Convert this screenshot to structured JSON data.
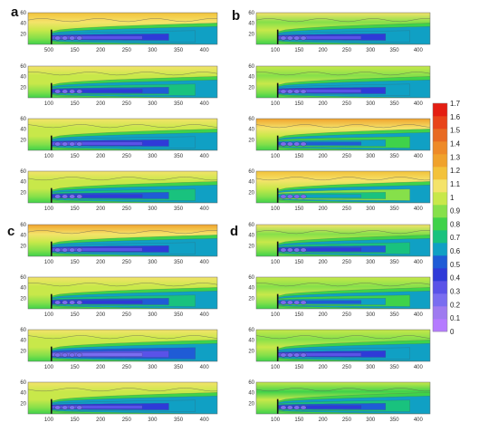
{
  "chart_data": {
    "type": "heatmap",
    "title": "",
    "panel_labels": [
      "a",
      "b",
      "c",
      "d"
    ],
    "plots_per_panel": 4,
    "xlim": [
      60,
      425
    ],
    "ylim": [
      0,
      60
    ],
    "x_ticks_left": [
      "100",
      "150",
      "200",
      "250",
      "300",
      "350",
      "400"
    ],
    "x_ticks_first": [
      "100",
      "150",
      "200",
      "250",
      "300",
      "350",
      "400"
    ],
    "x_ticks_first_display": [
      "500",
      "150",
      "200",
      "250",
      "300",
      "350",
      "400"
    ],
    "y_ticks": [
      "20",
      "40",
      "60"
    ],
    "colorbar": {
      "min": 0,
      "max": 1.7,
      "labels": [
        "0",
        "0.1",
        "0.2",
        "0.3",
        "0.4",
        "0.5",
        "0.6",
        "0.7",
        "0.8",
        "0.9",
        "1",
        "1.1",
        "1.2",
        "1.3",
        "1.4",
        "1.5",
        "1.6",
        "1.7"
      ],
      "colors": [
        "#b57bff",
        "#9f7bf0",
        "#7a6df0",
        "#5a52e8",
        "#2f3ad8",
        "#1f5cd6",
        "#10a0c4",
        "#19c27e",
        "#3fd24a",
        "#86e04a",
        "#c8e84a",
        "#f4e36a",
        "#f3c23a",
        "#f0a22c",
        "#ee8a28",
        "#e86a22",
        "#e8441a",
        "#e41e12"
      ]
    },
    "obstacle_x": 105,
    "wake_intensity": [
      [
        0.55,
        0.65,
        0.6,
        0.7
      ],
      [
        0.6,
        0.55,
        0.8,
        0.85
      ],
      [
        0.55,
        0.65,
        0.5,
        0.6
      ],
      [
        0.7,
        0.75,
        0.6,
        0.65
      ]
    ],
    "upper_band_level": [
      [
        1.2,
        1.1,
        1.15,
        1.1
      ],
      [
        1.05,
        1.0,
        1.25,
        1.2
      ],
      [
        1.25,
        1.1,
        1.15,
        1.1
      ],
      [
        1.05,
        1.0,
        1.0,
        0.95
      ]
    ]
  }
}
